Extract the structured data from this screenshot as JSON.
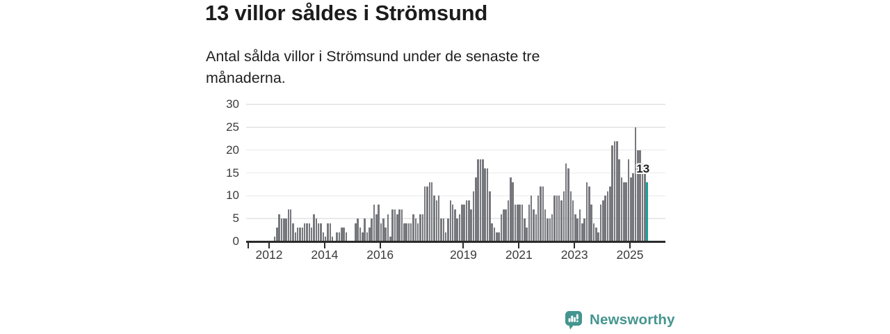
{
  "header": {
    "title": "13 villor såldes i Strömsund",
    "subtitle": "Antal sålda villor i Strömsund under de senaste tre månaderna."
  },
  "annotation": {
    "label": "13"
  },
  "logo": {
    "text": "Newsworthy",
    "icon": "speech-bubble-bar-chart-icon"
  },
  "colors": {
    "bar": "#77787d",
    "highlight": "#1aa29b",
    "grid": "#e9e9e9",
    "axis": "#2b2b2b",
    "logo": "#44958f"
  },
  "chart_data": {
    "type": "bar",
    "title": "13 villor såldes i Strömsund",
    "xlabel": "",
    "ylabel": "",
    "ylim": [
      0,
      30
    ],
    "grid": "horizontal",
    "y_ticks": [
      0,
      5,
      10,
      15,
      20,
      25,
      30
    ],
    "x_tick_years": [
      2012,
      2014,
      2016,
      2019,
      2021,
      2023,
      2025
    ],
    "start_month": "2012-03",
    "end_month": "2025-08",
    "unit": "sålda villor per rullande tre månader",
    "highlight_last": true,
    "last_value_label": "13",
    "values": [
      1,
      3,
      6,
      5,
      5,
      5,
      7,
      7,
      4,
      2,
      3,
      3,
      3,
      4,
      4,
      4,
      3,
      6,
      5,
      4,
      4,
      2,
      1,
      4,
      4,
      1,
      0,
      2,
      2,
      3,
      3,
      2,
      0,
      0,
      0,
      4,
      5,
      3,
      2,
      5,
      2,
      3,
      5,
      8,
      6,
      8,
      4,
      5,
      3,
      6,
      1,
      7,
      7,
      6,
      7,
      7,
      4,
      4,
      4,
      4,
      6,
      5,
      4,
      6,
      6,
      12,
      12,
      13,
      13,
      10,
      9,
      10,
      5,
      5,
      2,
      5,
      9,
      8,
      7,
      5,
      6,
      8,
      8,
      9,
      9,
      7,
      11,
      14,
      18,
      18,
      18,
      16,
      16,
      11,
      4,
      3,
      2,
      2,
      6,
      7,
      7,
      9,
      14,
      13,
      8,
      8,
      8,
      8,
      5,
      3,
      8,
      10,
      7,
      6,
      10,
      12,
      12,
      7,
      5,
      5,
      6,
      10,
      10,
      10,
      9,
      11,
      17,
      16,
      11,
      9,
      6,
      5,
      7,
      4,
      5,
      13,
      12,
      8,
      4,
      3,
      2,
      8,
      9,
      10,
      11,
      12,
      21,
      22,
      22,
      18,
      14,
      13,
      13,
      18,
      14,
      15,
      25,
      20,
      20,
      17,
      15,
      13
    ]
  }
}
